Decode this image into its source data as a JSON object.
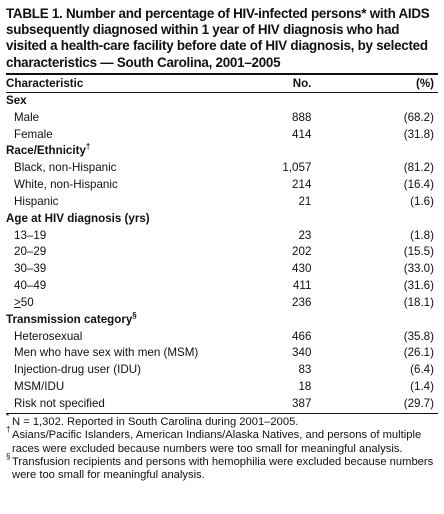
{
  "title": "TABLE 1. Number and percentage of HIV-infected persons* with AIDS subsequently diagnosed within 1 year of HIV diagnosis who had visited a health-care facility before date of HIV diagnosis, by selected characteristics — South Carolina, 2001–2005",
  "columns": {
    "characteristic": "Characteristic",
    "number": "No.",
    "percent": "(%)"
  },
  "sections": [
    {
      "label": "Sex",
      "mark": "",
      "rows": [
        {
          "label": "Male",
          "no": "888",
          "pct": "(68.2)"
        },
        {
          "label": "Female",
          "no": "414",
          "pct": "(31.8)"
        }
      ]
    },
    {
      "label": "Race/Ethnicity",
      "mark": "†",
      "rows": [
        {
          "label": "Black, non-Hispanic",
          "no": "1,057",
          "pct": "(81.2)"
        },
        {
          "label": "White, non-Hispanic",
          "no": "214",
          "pct": "(16.4)"
        },
        {
          "label": "Hispanic",
          "no": "21",
          "pct": "(1.6)"
        }
      ]
    },
    {
      "label": "Age at HIV diagnosis (yrs)",
      "mark": "",
      "rows": [
        {
          "label": "13–19",
          "no": "23",
          "pct": "(1.8)"
        },
        {
          "label": "20–29",
          "no": "202",
          "pct": "(15.5)"
        },
        {
          "label": "30–39",
          "no": "430",
          "pct": "(33.0)"
        },
        {
          "label": "40–49",
          "no": "411",
          "pct": "(31.6)"
        },
        {
          "label": ">50",
          "no": "236",
          "pct": "(18.1)"
        }
      ]
    },
    {
      "label": "Transmission category",
      "mark": "§",
      "rows": [
        {
          "label": "Heterosexual",
          "no": "466",
          "pct": "(35.8)"
        },
        {
          "label": "Men who have sex with men (MSM)",
          "no": "340",
          "pct": "(26.1)"
        },
        {
          "label": "Injection-drug user (IDU)",
          "no": "83",
          "pct": "(6.4)"
        },
        {
          "label": "MSM/IDU",
          "no": "18",
          "pct": "(1.4)"
        },
        {
          "label": "Risk not specified",
          "no": "387",
          "pct": "(29.7)"
        }
      ]
    }
  ],
  "footnotes": [
    {
      "mark": "*",
      "text": "N = 1,302. Reported in South Carolina during 2001–2005."
    },
    {
      "mark": "†",
      "text": "Asians/Pacific Islanders, American Indians/Alaska Natives, and persons of multiple races were excluded because numbers were too small for meaningful analysis."
    },
    {
      "mark": "§",
      "text": "Transfusion recipients and persons with hemophilia were excluded because numbers were too small for meaningful analysis."
    }
  ]
}
